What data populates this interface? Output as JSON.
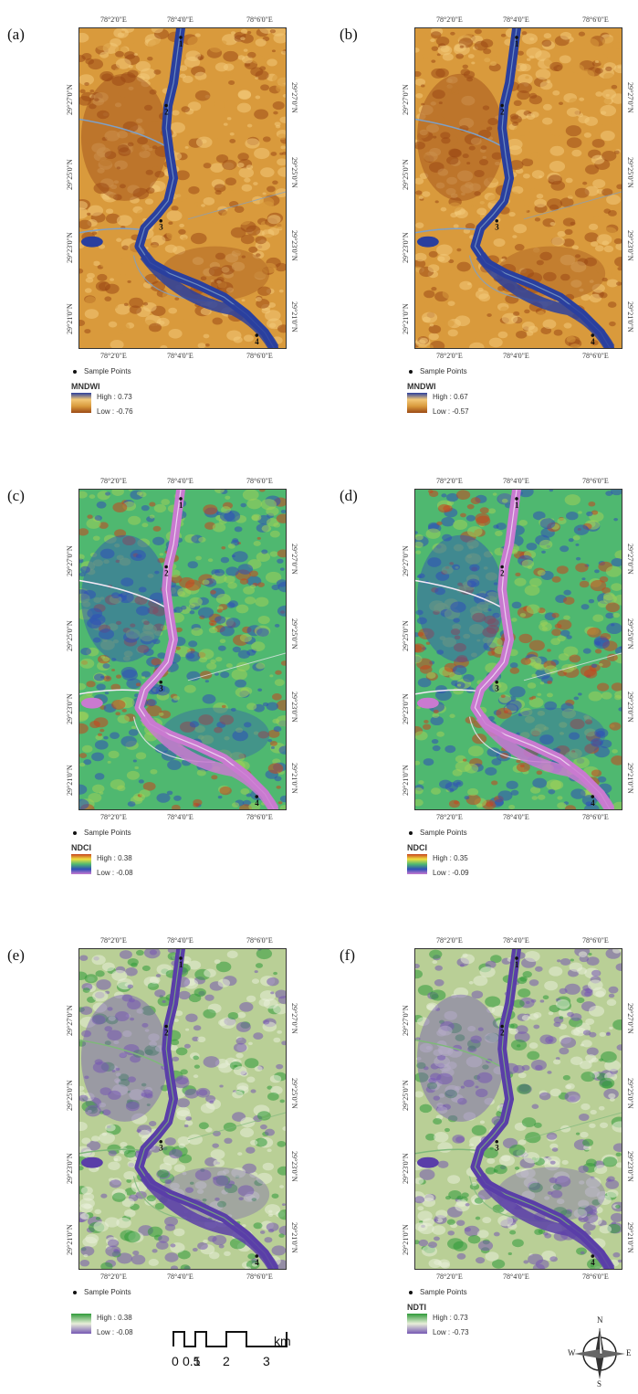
{
  "panels": [
    {
      "label": "(a)",
      "top_ticks": [
        "78°2'0\"E",
        "78°4'0\"E",
        "78°6'0\"E"
      ],
      "bottom_ticks": [
        "78°2'0\"E",
        "78°4'0\"E",
        "78°6'0\"E"
      ],
      "left_ticks": [
        "29°27'0\"N",
        "29°25'0\"N",
        "29°23'0\"N",
        "29°21'0\"N"
      ],
      "right_ticks": [
        "29°27'0\"N",
        "29°25'0\"N",
        "29°23'0\"N",
        "29°21'0\"N"
      ],
      "sample_points": "Sample Points",
      "index": "MNDWI",
      "high": "High : 0.73",
      "low": "Low : -0.76",
      "scheme": "mndwi"
    },
    {
      "label": "(b)",
      "top_ticks": [
        "78°2'0\"E",
        "78°4'0\"E",
        "78°6'0\"E"
      ],
      "bottom_ticks": [
        "78°2'0\"E",
        "78°4'0\"E",
        "78°6'0\"E"
      ],
      "left_ticks": [
        "29°27'0\"N",
        "29°25'0\"N",
        "29°23'0\"N",
        "29°21'0\"N"
      ],
      "right_ticks": [
        "29°27'0\"N",
        "29°25'0\"N",
        "29°23'0\"N",
        "29°21'0\"N"
      ],
      "sample_points": "Sample Points",
      "index": "MNDWI",
      "high": "High : 0.67",
      "low": "Low : -0.57",
      "scheme": "mndwi"
    },
    {
      "label": "(c)",
      "top_ticks": [
        "78°2'0\"E",
        "78°4'0\"E",
        "78°6'0\"E"
      ],
      "bottom_ticks": [
        "78°2'0\"E",
        "78°4'0\"E",
        "78°6'0\"E"
      ],
      "left_ticks": [
        "29°27'0\"N",
        "29°25'0\"N",
        "29°23'0\"N",
        "29°21'0\"N"
      ],
      "right_ticks": [
        "29°27'0\"N",
        "29°25'0\"N",
        "29°23'0\"N",
        "29°21'0\"N"
      ],
      "sample_points": "Sample Points",
      "index": "NDCI",
      "high": "High : 0.38",
      "low": "Low : -0.08",
      "scheme": "ndci"
    },
    {
      "label": "(d)",
      "top_ticks": [
        "78°2'0\"E",
        "78°4'0\"E",
        "78°6'0\"E"
      ],
      "bottom_ticks": [
        "78°2'0\"E",
        "78°4'0\"E",
        "78°6'0\"E"
      ],
      "left_ticks": [
        "29°27'0\"N",
        "29°25'0\"N",
        "29°23'0\"N",
        "29°21'0\"N"
      ],
      "right_ticks": [
        "29°27'0\"N",
        "29°25'0\"N",
        "29°23'0\"N",
        "29°21'0\"N"
      ],
      "sample_points": "Sample Points",
      "index": "NDCI",
      "high": "High : 0.35",
      "low": "Low : -0.09",
      "scheme": "ndci"
    },
    {
      "label": "(e)",
      "top_ticks": [
        "78°2'0\"E",
        "78°4'0\"E",
        "78°6'0\"E"
      ],
      "bottom_ticks": [
        "78°2'0\"E",
        "78°4'0\"E",
        "78°6'0\"E"
      ],
      "left_ticks": [
        "29°27'0\"N",
        "29°25'0\"N",
        "29°23'0\"N",
        "29°21'0\"N"
      ],
      "right_ticks": [
        "29°27'0\"N",
        "29°25'0\"N",
        "29°23'0\"N",
        "29°21'0\"N"
      ],
      "sample_points": "Sample Points",
      "index": "",
      "high": "High : 0.38",
      "low": "Low : -0.08",
      "scheme": "ndti"
    },
    {
      "label": "(f)",
      "top_ticks": [
        "78°2'0\"E",
        "78°4'0\"E",
        "78°6'0\"E"
      ],
      "bottom_ticks": [
        "78°2'0\"E",
        "78°4'0\"E",
        "78°6'0\"E"
      ],
      "left_ticks": [
        "29°27'0\"N",
        "29°25'0\"N",
        "29°23'0\"N",
        "29°21'0\"N"
      ],
      "right_ticks": [
        "29°27'0\"N",
        "29°25'0\"N",
        "29°23'0\"N",
        "29°21'0\"N"
      ],
      "sample_points": "Sample Points",
      "index": "NDTI",
      "high": "High : 0.73",
      "low": "Low : -0.73",
      "scheme": "ndti"
    }
  ],
  "point_labels": [
    "1",
    "2",
    "3",
    "4"
  ],
  "scalebar": {
    "labels": [
      "0",
      "0.5",
      "1",
      "2",
      "3"
    ],
    "unit": "km"
  },
  "compass": {
    "n": "N",
    "s": "S",
    "e": "E",
    "w": "W"
  },
  "colors": {
    "mndwi": {
      "bg": "#d99a3c",
      "light": "#f2c878",
      "dark": "#9c4a16",
      "water": "#2a3f9e",
      "road": "#7da0c8"
    },
    "ndci": {
      "bg": "#4fb870",
      "light": "#9fd05a",
      "dark": "#2f4fb8",
      "water": "#c97ad0",
      "road": "#f4e9f6",
      "hot": "#c8441e"
    },
    "ndti": {
      "bg": "#b9cf96",
      "light": "#e8efd9",
      "dark": "#7658b3",
      "water": "#5a3ea8",
      "road": "#7fb87a",
      "green": "#2f9a3a"
    }
  }
}
